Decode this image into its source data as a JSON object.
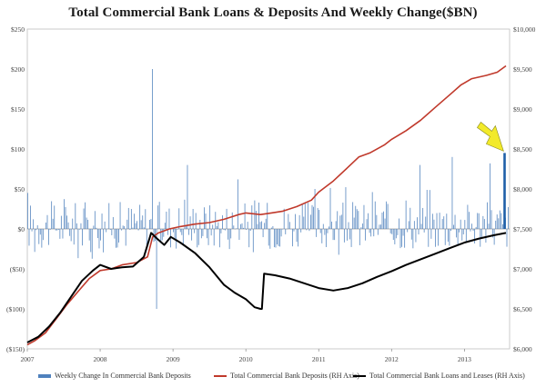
{
  "chart_data": {
    "type": "bar",
    "title": "Total Commercial Bank Loans & Deposits And Weekly Change($BN)",
    "x_ticks": [
      "2007",
      "2008",
      "2009",
      "2010",
      "2011",
      "2012",
      "2013"
    ],
    "left_axis": {
      "ylim": [
        -150,
        250
      ],
      "ticks": [
        "$250",
        "$200",
        "$150",
        "$100",
        "$50",
        "$0",
        "($50)",
        "($100)",
        "($150)"
      ],
      "tick_values": [
        250,
        200,
        150,
        100,
        50,
        0,
        -50,
        -100,
        -150
      ]
    },
    "right_axis": {
      "ylim": [
        6000,
        10000
      ],
      "ticks": [
        "$10,000",
        "$9,500",
        "$9,000",
        "$8,500",
        "$8,000",
        "$7,500",
        "$7,000",
        "$6,500",
        "$6,000"
      ],
      "tick_values": [
        10000,
        9500,
        9000,
        8500,
        8000,
        7500,
        7000,
        6500,
        6000
      ]
    },
    "series": [
      {
        "name": "Weekly Change In Commercial Bank Deposits",
        "type": "bar",
        "axis": "left",
        "color": "#4f81bd",
        "highlight": {
          "date": 2013.55,
          "value": 95,
          "color": "#1f5fa8"
        },
        "spikes": [
          {
            "x": 2008.71,
            "y": 200
          },
          {
            "x": 2008.76,
            "y": -100
          },
          {
            "x": 2009.2,
            "y": 80
          },
          {
            "x": 2009.88,
            "y": 62
          },
          {
            "x": 2010.95,
            "y": 50
          },
          {
            "x": 2012.38,
            "y": 80
          },
          {
            "x": 2012.82,
            "y": 90
          },
          {
            "x": 2013.35,
            "y": 82
          }
        ]
      },
      {
        "name": "Total Commercial Bank Deposits (RH Axis)",
        "type": "line",
        "axis": "right",
        "color": "#c0392b",
        "points": [
          [
            2007.0,
            6050
          ],
          [
            2007.1,
            6100
          ],
          [
            2007.25,
            6200
          ],
          [
            2007.4,
            6380
          ],
          [
            2007.55,
            6560
          ],
          [
            2007.7,
            6720
          ],
          [
            2007.85,
            6880
          ],
          [
            2008.0,
            6980
          ],
          [
            2008.15,
            7000
          ],
          [
            2008.3,
            7050
          ],
          [
            2008.5,
            7080
          ],
          [
            2008.65,
            7150
          ],
          [
            2008.72,
            7400
          ],
          [
            2008.8,
            7450
          ],
          [
            2008.95,
            7500
          ],
          [
            2009.1,
            7530
          ],
          [
            2009.3,
            7560
          ],
          [
            2009.5,
            7580
          ],
          [
            2009.7,
            7620
          ],
          [
            2009.9,
            7680
          ],
          [
            2010.0,
            7700
          ],
          [
            2010.2,
            7680
          ],
          [
            2010.35,
            7700
          ],
          [
            2010.5,
            7720
          ],
          [
            2010.7,
            7780
          ],
          [
            2010.9,
            7860
          ],
          [
            2011.0,
            7960
          ],
          [
            2011.2,
            8100
          ],
          [
            2011.4,
            8270
          ],
          [
            2011.55,
            8400
          ],
          [
            2011.7,
            8450
          ],
          [
            2011.9,
            8550
          ],
          [
            2012.0,
            8620
          ],
          [
            2012.2,
            8730
          ],
          [
            2012.4,
            8860
          ],
          [
            2012.6,
            9020
          ],
          [
            2012.8,
            9180
          ],
          [
            2012.95,
            9300
          ],
          [
            2013.1,
            9380
          ],
          [
            2013.3,
            9420
          ],
          [
            2013.45,
            9460
          ],
          [
            2013.57,
            9540
          ]
        ]
      },
      {
        "name": "Total Commercial Bank Loans and Leases (RH Axis)",
        "type": "line",
        "axis": "right",
        "color": "#000000",
        "points": [
          [
            2007.0,
            6080
          ],
          [
            2007.15,
            6150
          ],
          [
            2007.3,
            6280
          ],
          [
            2007.45,
            6450
          ],
          [
            2007.6,
            6650
          ],
          [
            2007.75,
            6850
          ],
          [
            2007.9,
            6980
          ],
          [
            2008.0,
            7050
          ],
          [
            2008.15,
            7000
          ],
          [
            2008.3,
            7020
          ],
          [
            2008.45,
            7030
          ],
          [
            2008.6,
            7150
          ],
          [
            2008.7,
            7450
          ],
          [
            2008.78,
            7380
          ],
          [
            2008.88,
            7300
          ],
          [
            2008.97,
            7400
          ],
          [
            2009.1,
            7330
          ],
          [
            2009.3,
            7200
          ],
          [
            2009.5,
            7020
          ],
          [
            2009.7,
            6800
          ],
          [
            2009.85,
            6700
          ],
          [
            2010.0,
            6620
          ],
          [
            2010.12,
            6520
          ],
          [
            2010.2,
            6500
          ],
          [
            2010.22,
            6500
          ],
          [
            2010.25,
            6940
          ],
          [
            2010.4,
            6920
          ],
          [
            2010.6,
            6880
          ],
          [
            2010.8,
            6820
          ],
          [
            2011.0,
            6760
          ],
          [
            2011.2,
            6730
          ],
          [
            2011.4,
            6760
          ],
          [
            2011.6,
            6820
          ],
          [
            2011.8,
            6900
          ],
          [
            2012.0,
            6970
          ],
          [
            2012.2,
            7050
          ],
          [
            2012.4,
            7120
          ],
          [
            2012.6,
            7190
          ],
          [
            2012.8,
            7260
          ],
          [
            2013.0,
            7330
          ],
          [
            2013.2,
            7380
          ],
          [
            2013.4,
            7420
          ],
          [
            2013.57,
            7450
          ]
        ]
      }
    ],
    "annotation": {
      "type": "arrow",
      "color": "#f2ea2a",
      "points_to": {
        "x": 2013.55,
        "y_left": 95
      }
    },
    "legend_position": "bottom"
  }
}
